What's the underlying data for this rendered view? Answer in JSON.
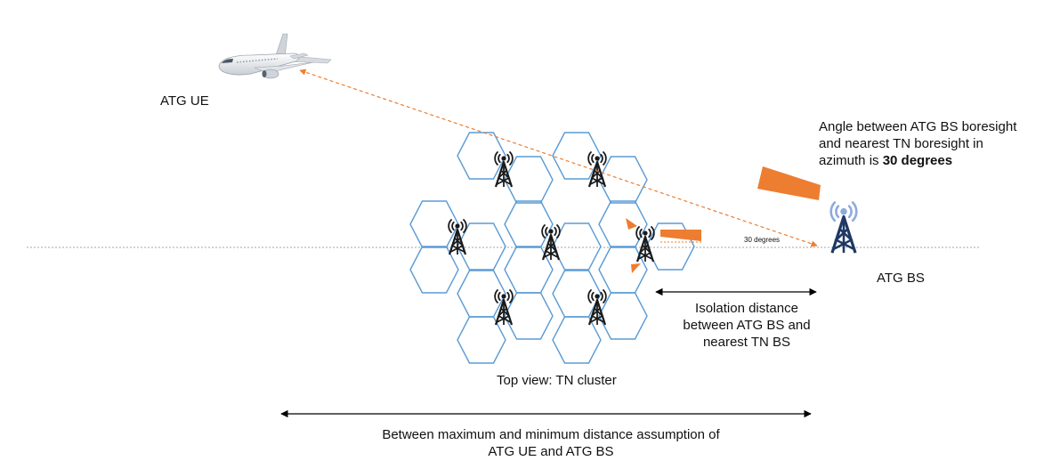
{
  "labels": {
    "atg_ue": "ATG UE",
    "atg_bs": "ATG BS",
    "angle_note": {
      "line1": "Angle between ATG BS boresight",
      "line2": "and nearest TN boresight in",
      "line3_prefix": "azimuth is ",
      "line3_bold": "30 degrees"
    },
    "angle_small": "30 degrees",
    "isolation": {
      "line1": "Isolation distance",
      "line2": "between ATG BS and",
      "line3": "nearest TN BS"
    },
    "cluster_caption": "Top view: TN cluster",
    "range_note": {
      "line1": "Between maximum and minimum distance assumption of",
      "line2": "ATG UE and ATG BS"
    }
  },
  "colors": {
    "hex_stroke": "#5b9bd5",
    "tower_dark": "#1f3864",
    "tower_light": "#8faadc",
    "accent_orange": "#ed7d31",
    "dotted_line": "#a6a6a6",
    "text": "#111111"
  },
  "icons": {
    "airplane": "airplane-icon",
    "tn_tower": "cell-tower-icon",
    "atg_tower": "atg-tower-icon"
  }
}
